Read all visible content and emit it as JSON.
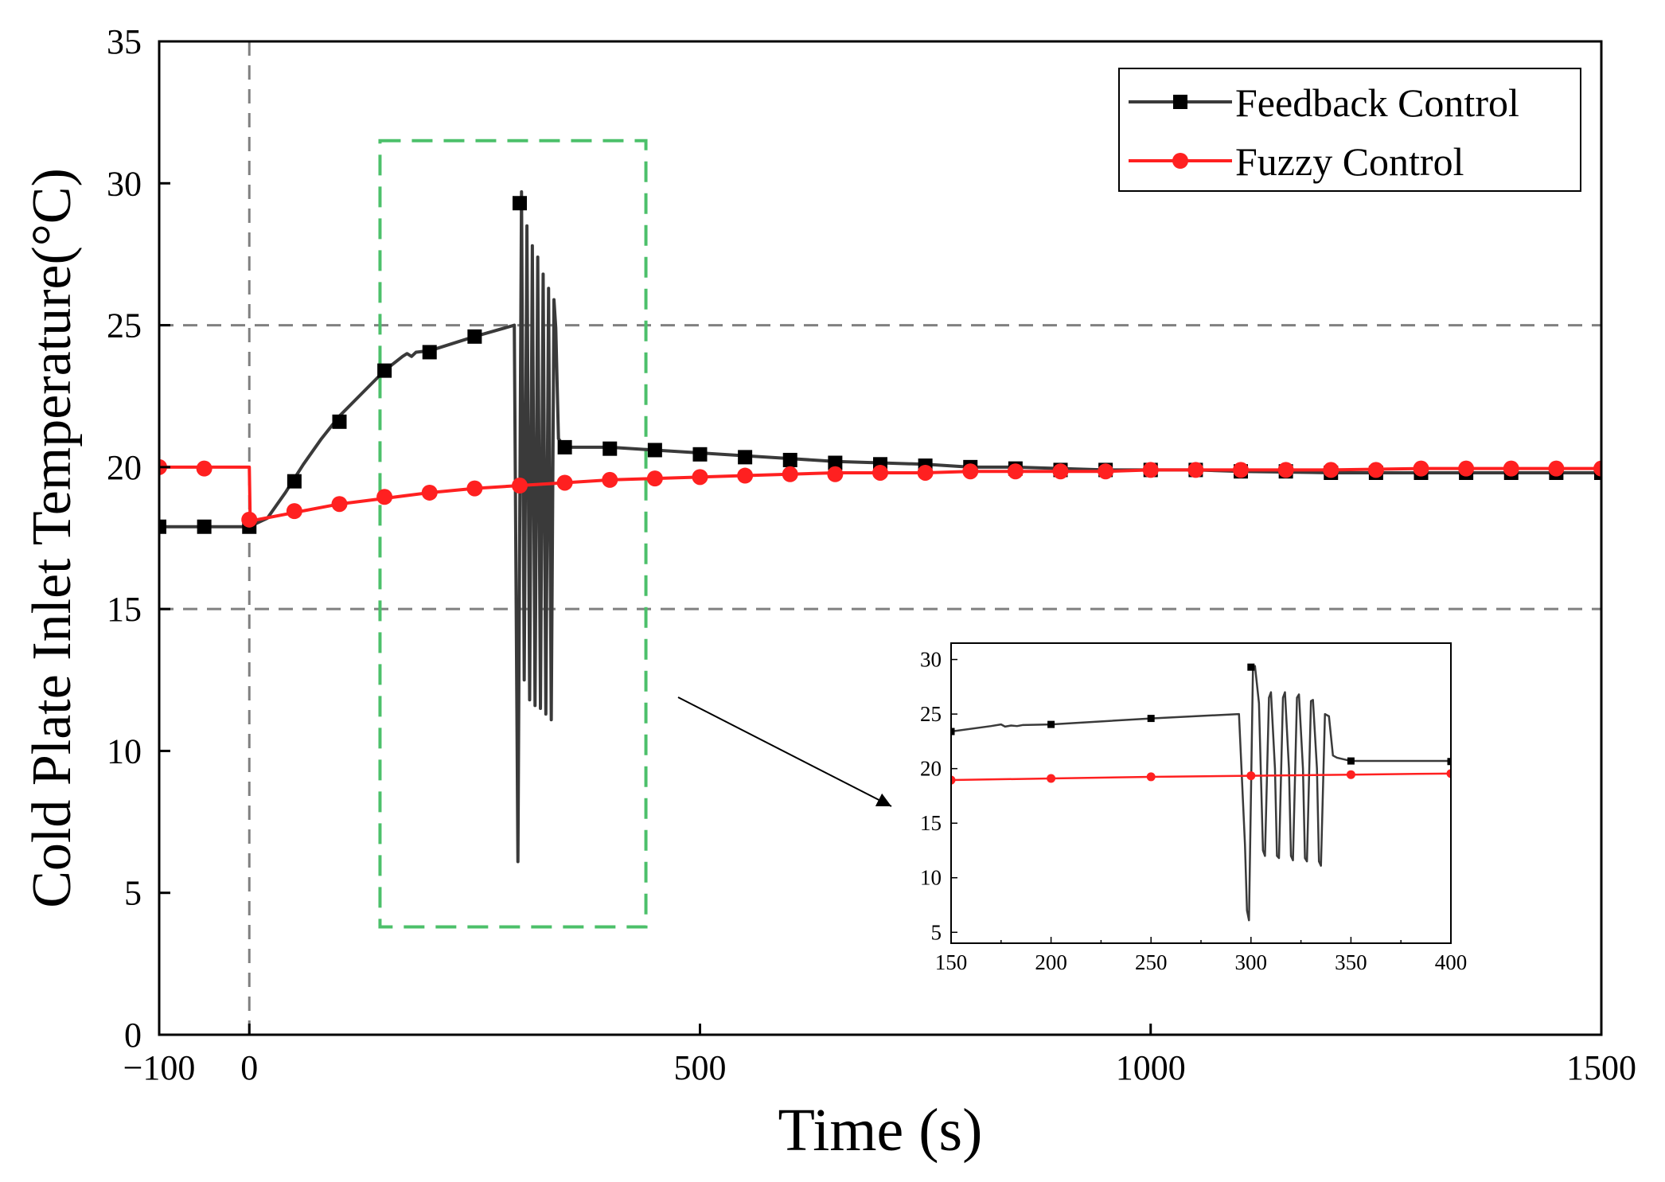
{
  "colors": {
    "feedback": "#3a3a3a",
    "fuzzy": "#ff2020",
    "reference_lines": "#808080",
    "zoom_box": "#4cc06a",
    "axes": "#000000"
  },
  "chart_data": [
    {
      "id": "main",
      "type": "line",
      "title": "",
      "xlabel": "Time (s)",
      "ylabel": "Cold Plate Inlet Temperature(°C)",
      "xlim": [
        -100,
        1500
      ],
      "ylim": [
        0,
        35
      ],
      "xticks": [
        -100,
        0,
        500,
        1000,
        1500
      ],
      "xtick_labels": [
        "−100",
        "0",
        "500",
        "1000",
        "1500"
      ],
      "yticks": [
        0,
        5,
        10,
        15,
        20,
        25,
        30,
        35
      ],
      "ytick_labels": [
        "0",
        "5",
        "10",
        "15",
        "20",
        "25",
        "30",
        "35"
      ],
      "grid": false,
      "legend": {
        "position": "top-right",
        "entries": [
          "Feedback Control",
          "Fuzzy Control"
        ]
      },
      "reference_lines": {
        "horizontal": [
          15,
          25
        ],
        "vertical": [
          0
        ]
      },
      "zoom_region": {
        "x": [
          145,
          440
        ],
        "y": [
          3.8,
          31.5
        ]
      },
      "series": [
        {
          "name": "Feedback Control",
          "marker": "square",
          "line": [
            [
              -100,
              17.9
            ],
            [
              0,
              17.9
            ],
            [
              20,
              18.2
            ],
            [
              40,
              19.1
            ],
            [
              60,
              20.1
            ],
            [
              80,
              21.0
            ],
            [
              100,
              21.8
            ],
            [
              125,
              22.6
            ],
            [
              150,
              23.4
            ],
            [
              170,
              23.9
            ],
            [
              175,
              24.0
            ],
            [
              180,
              23.9
            ],
            [
              185,
              24.05
            ],
            [
              200,
              24.1
            ],
            [
              250,
              24.6
            ],
            [
              294,
              25.0
            ],
            [
              298,
              6.1
            ],
            [
              302,
              29.7
            ],
            [
              305,
              12.5
            ],
            [
              308,
              28.5
            ],
            [
              311,
              11.8
            ],
            [
              314,
              27.8
            ],
            [
              317,
              11.6
            ],
            [
              320,
              27.4
            ],
            [
              323,
              11.5
            ],
            [
              326,
              26.8
            ],
            [
              329,
              11.3
            ],
            [
              332,
              26.3
            ],
            [
              335,
              11.1
            ],
            [
              338,
              25.9
            ],
            [
              340,
              24.9
            ],
            [
              343,
              21.0
            ],
            [
              350,
              20.7
            ],
            [
              400,
              20.7
            ],
            [
              450,
              20.6
            ],
            [
              500,
              20.5
            ],
            [
              550,
              20.4
            ],
            [
              600,
              20.3
            ],
            [
              650,
              20.2
            ],
            [
              700,
              20.15
            ],
            [
              750,
              20.1
            ],
            [
              800,
              20.0
            ],
            [
              850,
              20.0
            ],
            [
              900,
              19.95
            ],
            [
              950,
              19.9
            ],
            [
              1000,
              19.9
            ],
            [
              1050,
              19.9
            ],
            [
              1100,
              19.85
            ],
            [
              1200,
              19.8
            ],
            [
              1300,
              19.8
            ],
            [
              1400,
              19.8
            ],
            [
              1500,
              19.8
            ]
          ],
          "markers": [
            [
              -100,
              17.9
            ],
            [
              -50,
              17.9
            ],
            [
              0,
              17.9
            ],
            [
              50,
              19.5
            ],
            [
              100,
              21.6
            ],
            [
              150,
              23.4
            ],
            [
              200,
              24.05
            ],
            [
              250,
              24.6
            ],
            [
              300,
              29.3
            ],
            [
              350,
              20.7
            ],
            [
              400,
              20.65
            ],
            [
              450,
              20.6
            ],
            [
              500,
              20.45
            ],
            [
              550,
              20.35
            ],
            [
              600,
              20.25
            ],
            [
              650,
              20.15
            ],
            [
              700,
              20.1
            ],
            [
              750,
              20.05
            ],
            [
              800,
              20.0
            ],
            [
              850,
              19.95
            ],
            [
              900,
              19.9
            ],
            [
              950,
              19.9
            ],
            [
              1000,
              19.9
            ],
            [
              1050,
              19.9
            ],
            [
              1100,
              19.85
            ],
            [
              1150,
              19.85
            ],
            [
              1200,
              19.8
            ],
            [
              1250,
              19.8
            ],
            [
              1300,
              19.8
            ],
            [
              1350,
              19.8
            ],
            [
              1400,
              19.8
            ],
            [
              1450,
              19.8
            ],
            [
              1500,
              19.8
            ]
          ]
        },
        {
          "name": "Fuzzy Control",
          "marker": "circle",
          "line": [
            [
              -100,
              20.0
            ],
            [
              0,
              20.0
            ],
            [
              1,
              18.1
            ],
            [
              50,
              18.4
            ],
            [
              100,
              18.7
            ],
            [
              150,
              18.9
            ],
            [
              200,
              19.1
            ],
            [
              250,
              19.25
            ],
            [
              300,
              19.35
            ],
            [
              350,
              19.45
            ],
            [
              400,
              19.55
            ],
            [
              450,
              19.6
            ],
            [
              500,
              19.65
            ],
            [
              550,
              19.7
            ],
            [
              600,
              19.75
            ],
            [
              650,
              19.8
            ],
            [
              700,
              19.8
            ],
            [
              750,
              19.8
            ],
            [
              800,
              19.85
            ],
            [
              850,
              19.85
            ],
            [
              900,
              19.85
            ],
            [
              950,
              19.85
            ],
            [
              1000,
              19.9
            ],
            [
              1100,
              19.9
            ],
            [
              1200,
              19.9
            ],
            [
              1300,
              19.95
            ],
            [
              1400,
              19.95
            ],
            [
              1500,
              19.95
            ]
          ],
          "markers": [
            [
              -100,
              20.0
            ],
            [
              -50,
              19.95
            ],
            [
              0,
              18.15
            ],
            [
              50,
              18.45
            ],
            [
              100,
              18.7
            ],
            [
              150,
              18.95
            ],
            [
              200,
              19.1
            ],
            [
              250,
              19.25
            ],
            [
              300,
              19.35
            ],
            [
              350,
              19.45
            ],
            [
              400,
              19.55
            ],
            [
              450,
              19.6
            ],
            [
              500,
              19.65
            ],
            [
              550,
              19.7
            ],
            [
              600,
              19.75
            ],
            [
              650,
              19.75
            ],
            [
              700,
              19.8
            ],
            [
              750,
              19.8
            ],
            [
              800,
              19.85
            ],
            [
              850,
              19.85
            ],
            [
              900,
              19.85
            ],
            [
              950,
              19.85
            ],
            [
              1000,
              19.9
            ],
            [
              1050,
              19.9
            ],
            [
              1100,
              19.9
            ],
            [
              1150,
              19.9
            ],
            [
              1200,
              19.9
            ],
            [
              1250,
              19.9
            ],
            [
              1300,
              19.95
            ],
            [
              1350,
              19.95
            ],
            [
              1400,
              19.95
            ],
            [
              1450,
              19.95
            ],
            [
              1500,
              19.95
            ]
          ]
        }
      ]
    },
    {
      "id": "inset",
      "type": "line",
      "title": "",
      "xlabel": "",
      "ylabel": "",
      "xlim": [
        150,
        400
      ],
      "ylim": [
        4,
        31.5
      ],
      "xticks": [
        150,
        200,
        250,
        300,
        350,
        400
      ],
      "xtick_labels": [
        "150",
        "200",
        "250",
        "300",
        "350",
        "400"
      ],
      "yticks": [
        5,
        10,
        15,
        20,
        25,
        30
      ],
      "ytick_labels": [
        "5",
        "10",
        "15",
        "20",
        "25",
        "30"
      ],
      "grid": false,
      "series": [
        {
          "name": "Feedback Control",
          "marker": "square",
          "line": [
            [
              150,
              23.4
            ],
            [
              170,
              23.9
            ],
            [
              175,
              24.05
            ],
            [
              177,
              23.85
            ],
            [
              180,
              23.95
            ],
            [
              183,
              23.9
            ],
            [
              186,
              24.0
            ],
            [
              200,
              24.05
            ],
            [
              250,
              24.6
            ],
            [
              294,
              25.0
            ],
            [
              297,
              13.0
            ],
            [
              298,
              7.0
            ],
            [
              299,
              6.1
            ],
            [
              301,
              29.3
            ],
            [
              302,
              29.4
            ],
            [
              304,
              26.0
            ],
            [
              306,
              12.5
            ],
            [
              307,
              12.0
            ],
            [
              309,
              26.5
            ],
            [
              310,
              27.0
            ],
            [
              312,
              20.0
            ],
            [
              313,
              12.0
            ],
            [
              314,
              11.8
            ],
            [
              316,
              26.5
            ],
            [
              317,
              27.0
            ],
            [
              319,
              20.0
            ],
            [
              320,
              12.0
            ],
            [
              321,
              11.6
            ],
            [
              323,
              26.5
            ],
            [
              324,
              26.8
            ],
            [
              326,
              20.0
            ],
            [
              327,
              11.8
            ],
            [
              328,
              11.5
            ],
            [
              330,
              26.2
            ],
            [
              331,
              26.3
            ],
            [
              333,
              20.0
            ],
            [
              334,
              11.5
            ],
            [
              335,
              11.1
            ],
            [
              337,
              25.0
            ],
            [
              338,
              24.9
            ],
            [
              339,
              24.8
            ],
            [
              341,
              21.2
            ],
            [
              343,
              21.0
            ],
            [
              350,
              20.7
            ],
            [
              400,
              20.7
            ]
          ],
          "markers": [
            [
              150,
              23.4
            ],
            [
              200,
              24.05
            ],
            [
              250,
              24.6
            ],
            [
              300,
              29.3
            ],
            [
              350,
              20.7
            ],
            [
              400,
              20.65
            ]
          ]
        },
        {
          "name": "Fuzzy Control",
          "marker": "circle",
          "line": [
            [
              150,
              18.95
            ],
            [
              200,
              19.1
            ],
            [
              250,
              19.25
            ],
            [
              300,
              19.35
            ],
            [
              350,
              19.45
            ],
            [
              400,
              19.55
            ]
          ],
          "markers": [
            [
              150,
              18.95
            ],
            [
              200,
              19.1
            ],
            [
              250,
              19.25
            ],
            [
              300,
              19.35
            ],
            [
              350,
              19.45
            ],
            [
              400,
              19.55
            ]
          ]
        }
      ]
    }
  ]
}
